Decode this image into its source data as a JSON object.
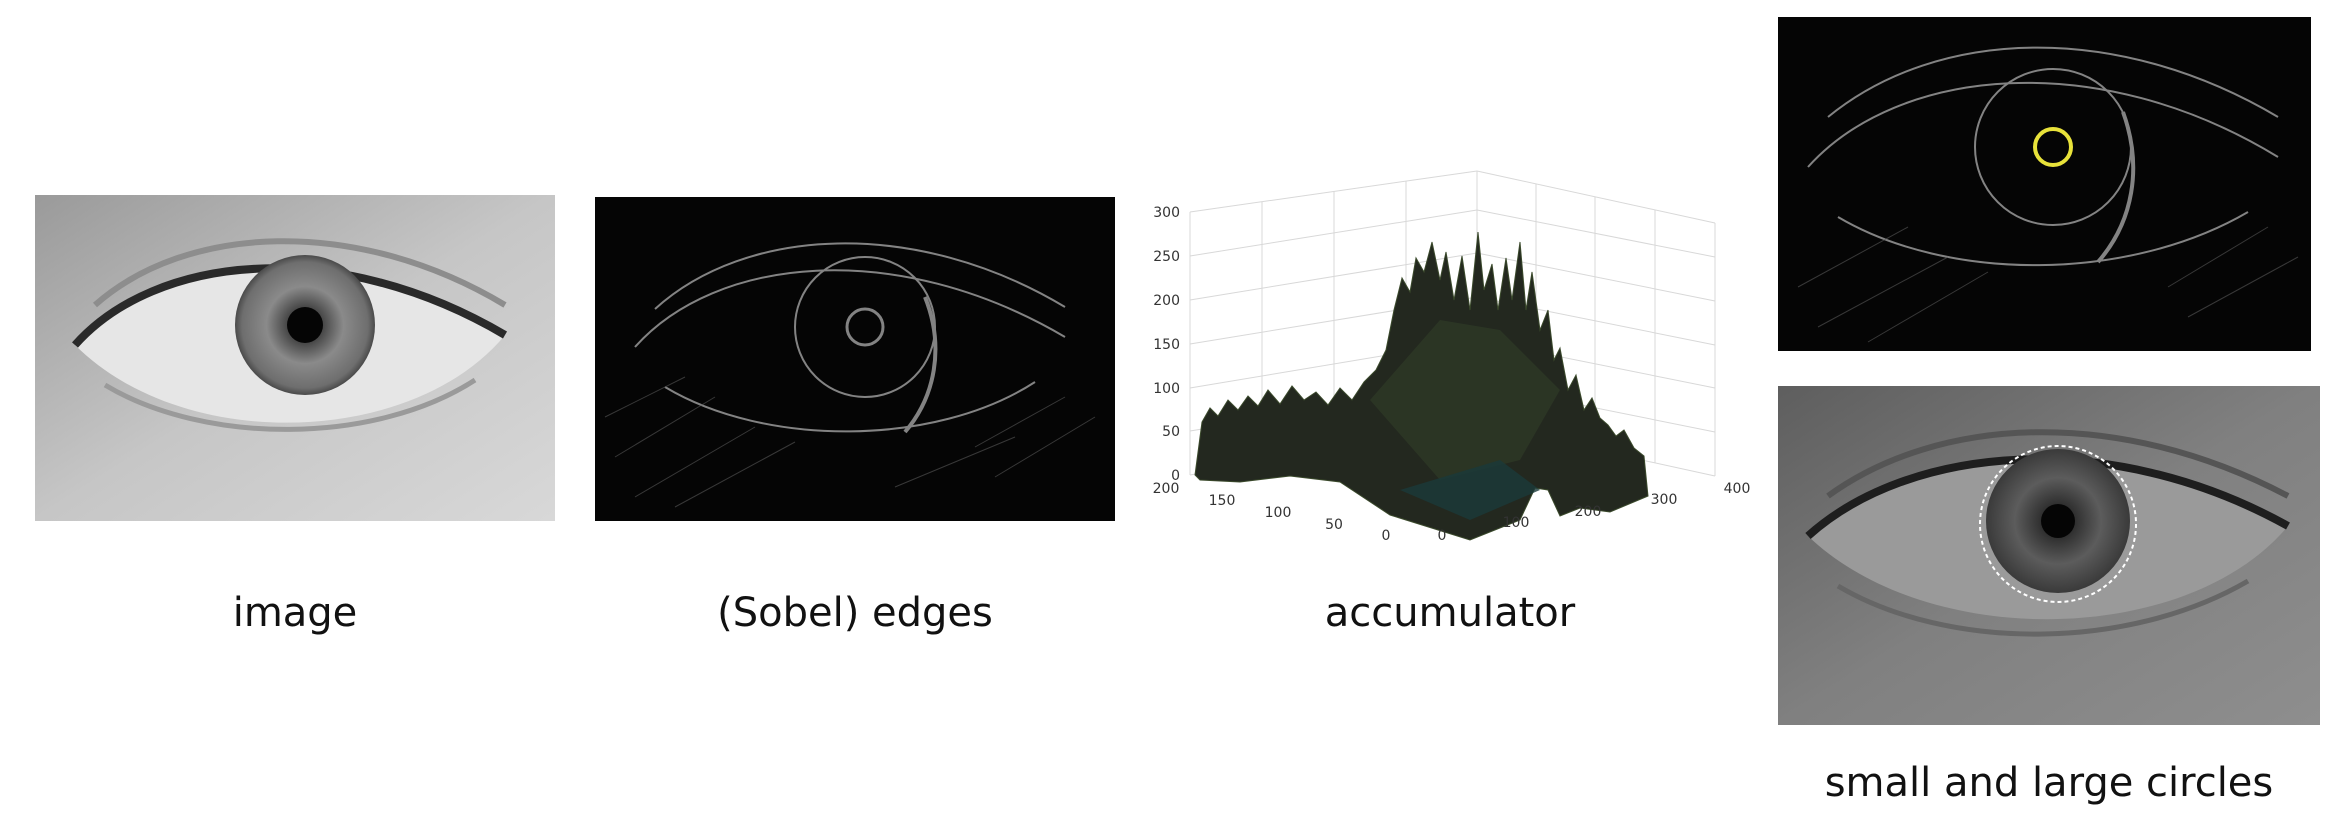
{
  "captions": {
    "image": "image",
    "edges": "(Sobel) edges",
    "accumulator": "accumulator",
    "circles": "small and large circles"
  },
  "accumulator_plot": {
    "z_ticks": [
      "0",
      "50",
      "100",
      "150",
      "200",
      "250",
      "300"
    ],
    "y_ticks": [
      "200",
      "150",
      "100",
      "50",
      "0"
    ],
    "x_ticks": [
      "0",
      "100",
      "200",
      "300",
      "400"
    ]
  },
  "overlay_colors": {
    "small_circle": "#e8e23a",
    "large_circle": "#ffffff"
  }
}
